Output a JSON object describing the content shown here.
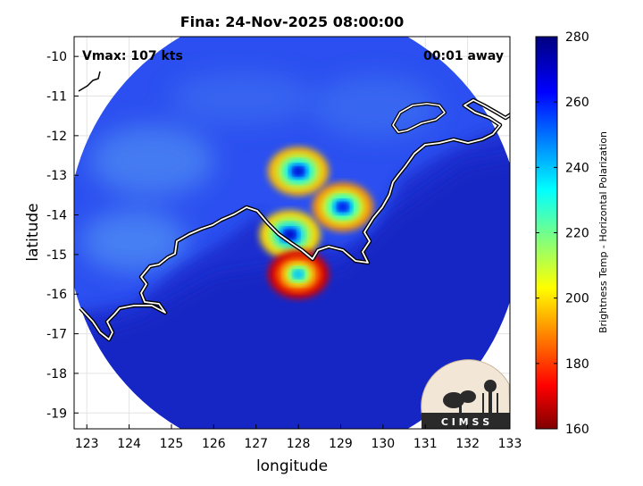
{
  "chart_data": {
    "type": "heatmap",
    "title": "Fina: 24-Nov-2025 08:00:00",
    "xlabel": "longitude",
    "ylabel": "latitude",
    "xlim": [
      122.7,
      133
    ],
    "ylim": [
      -19.4,
      -9.5
    ],
    "x_ticks": [
      "123",
      "124",
      "125",
      "126",
      "127",
      "128",
      "129",
      "130",
      "131",
      "132",
      "133"
    ],
    "y_ticks": [
      "-10",
      "-11",
      "-12",
      "-13",
      "-14",
      "-15",
      "-16",
      "-17",
      "-18",
      "-19"
    ],
    "grid": true,
    "annotation_left": "Vmax: 107 kts",
    "annotation_right": "00:01 away",
    "colorbar": {
      "label": "Brightness Temp - Horizontal Polarization",
      "range": [
        160,
        280
      ],
      "ticks": [
        "280",
        "260",
        "240",
        "220",
        "200",
        "180",
        "160"
      ],
      "colormap": "jet"
    },
    "swath": {
      "center": [
        127.9,
        -14.45
      ],
      "radius_deg": 5.35
    },
    "cold_cores": [
      {
        "lon": 127.8,
        "lat": -14.5,
        "tb": 165
      },
      {
        "lon": 128.0,
        "lat": -12.9,
        "tb": 168
      },
      {
        "lon": 129.05,
        "lat": -13.8,
        "tb": 172
      },
      {
        "lon": 128.0,
        "lat": -15.5,
        "tb": 195
      }
    ],
    "logo_text": "C I M S S"
  }
}
